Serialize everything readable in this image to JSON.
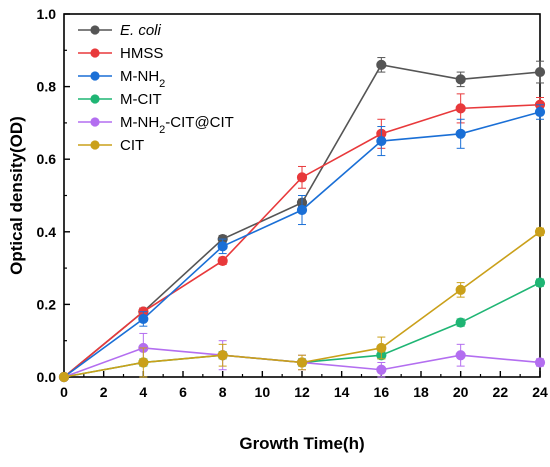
{
  "chart_data": {
    "type": "line",
    "title": "",
    "xlabel": "Growth Time(h)",
    "ylabel": "Optical density(OD)",
    "xlim": [
      0,
      24
    ],
    "ylim": [
      0,
      1.0
    ],
    "x": [
      0,
      4,
      8,
      12,
      16,
      20,
      24
    ],
    "x_ticks": [
      "0",
      "2",
      "4",
      "6",
      "8",
      "10",
      "12",
      "14",
      "16",
      "18",
      "20",
      "22",
      "24"
    ],
    "y_ticks": [
      "0.0",
      "0.2",
      "0.4",
      "0.6",
      "0.8",
      "1.0"
    ],
    "grid": false,
    "legend_position": "top-left",
    "series": [
      {
        "name": "E. coli",
        "italic": true,
        "color": "#555555",
        "values": [
          0.0,
          0.18,
          0.38,
          0.48,
          0.86,
          0.82,
          0.84
        ],
        "errors": [
          0.0,
          0.01,
          0.01,
          0.01,
          0.02,
          0.02,
          0.03
        ]
      },
      {
        "name": "HMSS",
        "color": "#e8393b",
        "values": [
          0.0,
          0.18,
          0.32,
          0.55,
          0.67,
          0.74,
          0.75
        ],
        "errors": [
          0.0,
          0.01,
          0.01,
          0.03,
          0.04,
          0.04,
          0.02
        ]
      },
      {
        "name": "M-NH2",
        "label_main": "M-NH",
        "label_sub": "2",
        "label_tail": "",
        "color": "#1a6fd6",
        "values": [
          0.0,
          0.16,
          0.36,
          0.46,
          0.65,
          0.67,
          0.73
        ],
        "errors": [
          0.0,
          0.02,
          0.02,
          0.04,
          0.04,
          0.04,
          0.02
        ]
      },
      {
        "name": "M-CIT",
        "color": "#1fb574",
        "values": [
          0.0,
          0.04,
          0.06,
          0.04,
          0.06,
          0.15,
          0.26
        ],
        "errors": [
          0.0,
          0.01,
          0.01,
          0.01,
          0.01,
          0.01,
          0.01
        ]
      },
      {
        "name": "M-NH2-CIT@CIT",
        "label_main": "M-NH",
        "label_sub": "2",
        "label_tail": "-CIT@CIT",
        "color": "#b36ef0",
        "values": [
          0.0,
          0.08,
          0.06,
          0.04,
          0.02,
          0.06,
          0.04
        ],
        "errors": [
          0.0,
          0.04,
          0.04,
          0.02,
          0.02,
          0.03,
          0.01
        ]
      },
      {
        "name": "CIT",
        "color": "#caa01a",
        "values": [
          0.0,
          0.04,
          0.06,
          0.04,
          0.08,
          0.24,
          0.4
        ],
        "errors": [
          0.0,
          0.04,
          0.03,
          0.02,
          0.03,
          0.02,
          0.01
        ]
      }
    ]
  }
}
